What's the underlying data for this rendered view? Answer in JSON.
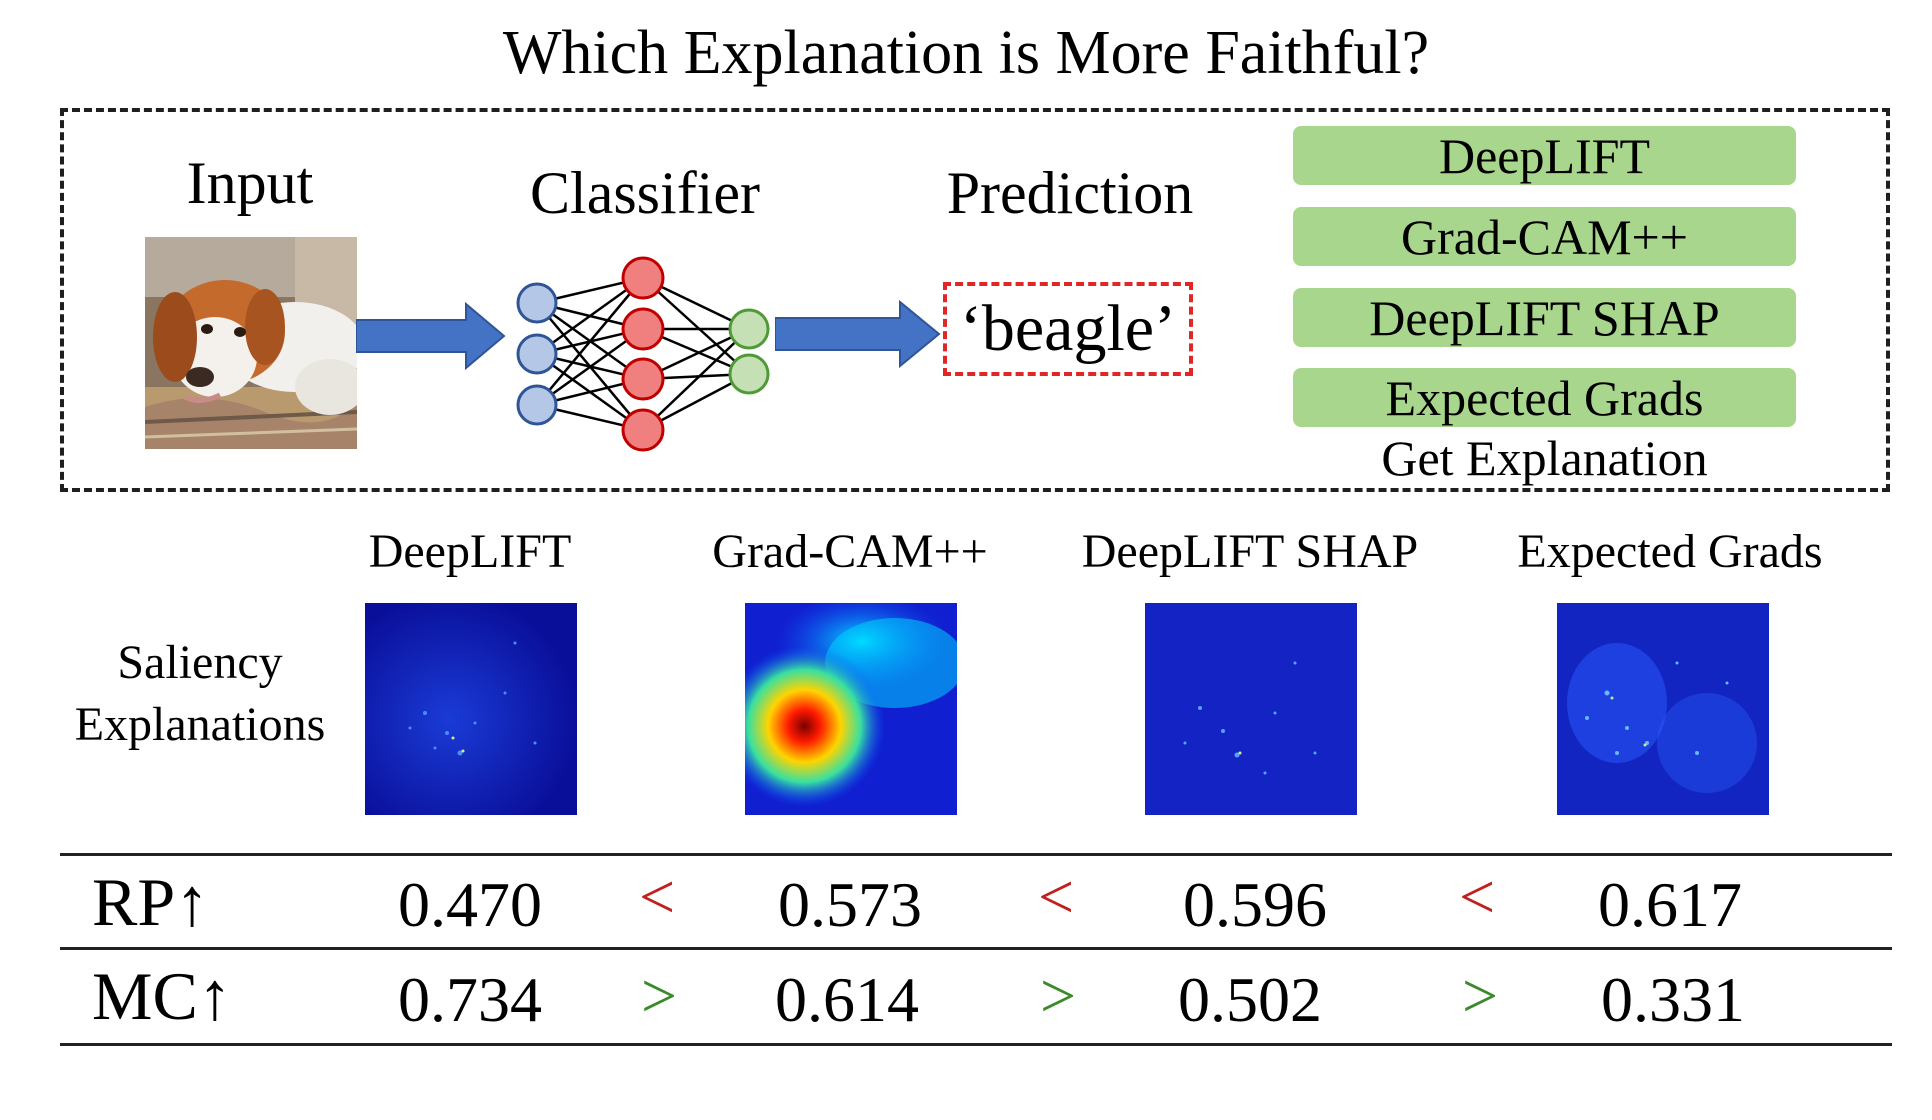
{
  "title": "Which Explanation is More Faithful?",
  "pipeline": {
    "input_label": "Input",
    "classifier_label": "Classifier",
    "prediction_label": "Prediction",
    "prediction_value": "‘beagle’"
  },
  "explanation_methods": {
    "items": [
      "DeepLIFT",
      "Grad-CAM++",
      "DeepLIFT SHAP",
      "Expected Grads"
    ],
    "caption": "Get Explanation"
  },
  "saliency": {
    "row_label_line1": "Saliency",
    "row_label_line2": "Explanations",
    "columns": [
      "DeepLIFT",
      "Grad-CAM++",
      "DeepLIFT SHAP",
      "Expected Grads"
    ]
  },
  "metrics": {
    "rows": [
      {
        "name": "RP↑",
        "values": [
          "0.470",
          "0.573",
          "0.596",
          "0.617"
        ],
        "comparators": [
          "<",
          "<",
          "<"
        ]
      },
      {
        "name": "MC↑",
        "values": [
          "0.734",
          "0.614",
          "0.502",
          "0.331"
        ],
        "comparators": [
          ">",
          ">",
          ">"
        ]
      }
    ]
  },
  "colors": {
    "less_than": "#c0201e",
    "greater_than": "#3a8a2a",
    "method_fill": "#a9d68d",
    "arrow_blue": "#4472c4",
    "input_node": "#2f5597",
    "hidden_node": "#c00000",
    "output_node": "#4f9a36"
  }
}
